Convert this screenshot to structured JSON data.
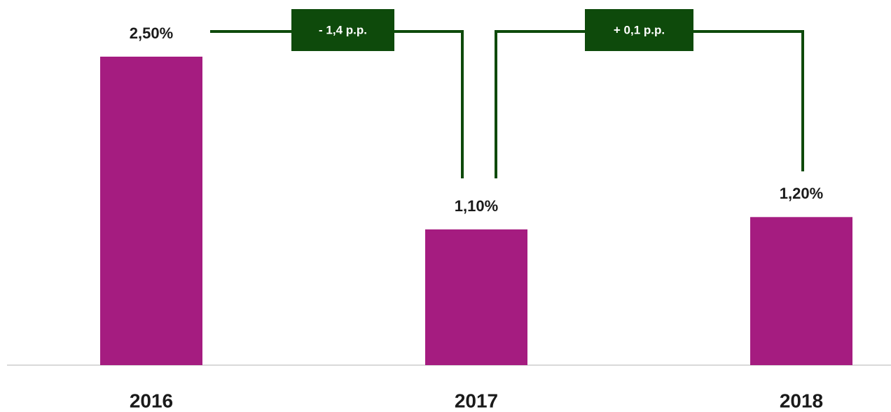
{
  "chart_data": {
    "type": "bar",
    "categories": [
      "2016",
      "2017",
      "2018"
    ],
    "values": [
      2.5,
      1.1,
      1.2
    ],
    "value_labels": [
      "2,50%",
      "1,10%",
      "1,20%"
    ],
    "color": "#a51c80",
    "ylim": [
      0,
      2.5
    ],
    "annotations": [
      {
        "text": "- 1,4 p.p."
      },
      {
        "text": "+ 0,1 p.p."
      }
    ],
    "annotation_color": "#0e4a0b"
  }
}
